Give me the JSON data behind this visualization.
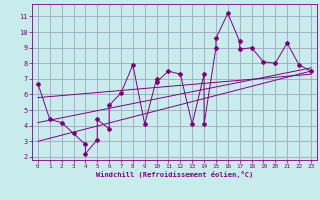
{
  "title": "",
  "xlabel": "Windchill (Refroidissement éolien,°C)",
  "bg_color": "#c8ecec",
  "grid_color": "#9999bb",
  "line_color": "#800080",
  "xlim": [
    -0.5,
    23.5
  ],
  "ylim": [
    1.8,
    11.8
  ],
  "xticks": [
    0,
    1,
    2,
    3,
    4,
    5,
    6,
    7,
    8,
    9,
    10,
    11,
    12,
    13,
    14,
    15,
    16,
    17,
    18,
    19,
    20,
    21,
    22,
    23
  ],
  "yticks": [
    2,
    3,
    4,
    5,
    6,
    7,
    8,
    9,
    10,
    11
  ],
  "series": [
    [
      0,
      6.7
    ],
    [
      1,
      4.4
    ],
    [
      2,
      4.2
    ],
    [
      3,
      3.5
    ],
    [
      4,
      2.8
    ],
    [
      4,
      2.2
    ],
    [
      5,
      3.1
    ],
    [
      5,
      4.4
    ],
    [
      6,
      3.8
    ],
    [
      6,
      5.3
    ],
    [
      7,
      6.1
    ],
    [
      8,
      7.9
    ],
    [
      9,
      4.1
    ],
    [
      10,
      7.0
    ],
    [
      10,
      6.8
    ],
    [
      11,
      7.5
    ],
    [
      12,
      7.3
    ],
    [
      13,
      4.1
    ],
    [
      14,
      7.3
    ],
    [
      14,
      4.1
    ],
    [
      15,
      9.0
    ],
    [
      15,
      9.6
    ],
    [
      16,
      11.2
    ],
    [
      17,
      9.4
    ],
    [
      17,
      8.9
    ],
    [
      18,
      9.0
    ],
    [
      19,
      8.1
    ],
    [
      20,
      8.0
    ],
    [
      21,
      9.3
    ],
    [
      22,
      7.9
    ],
    [
      23,
      7.5
    ]
  ],
  "trend_line1": [
    [
      0,
      3.0
    ],
    [
      23,
      7.5
    ]
  ],
  "trend_line2": [
    [
      0,
      4.2
    ],
    [
      23,
      7.7
    ]
  ],
  "trend_line3": [
    [
      0,
      5.8
    ],
    [
      23,
      7.3
    ]
  ]
}
